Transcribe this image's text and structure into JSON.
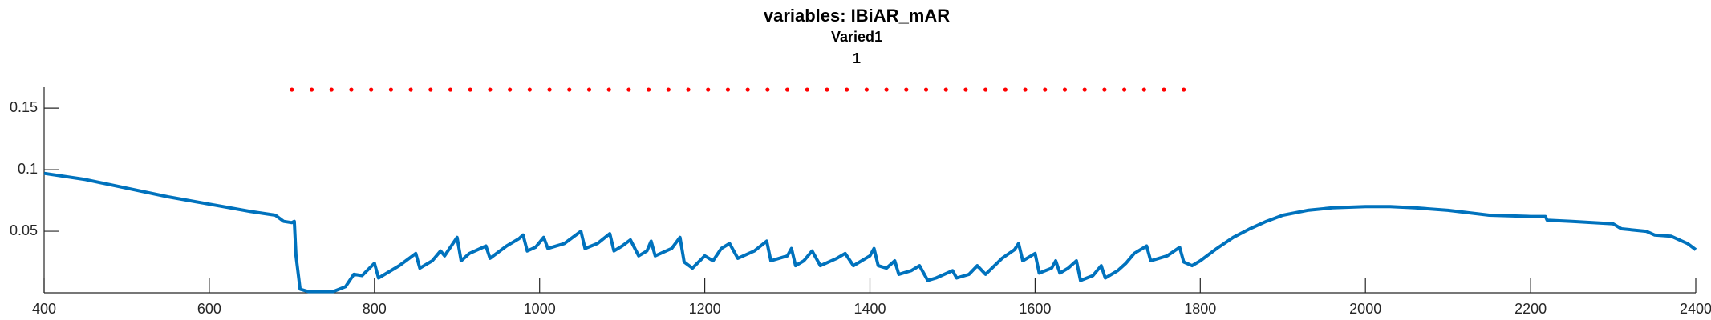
{
  "chart_data": {
    "type": "line",
    "title": "variables: IBiAR_mAR",
    "subtitle": "Varied1",
    "subtitle2": "1",
    "xlim": [
      400,
      2400
    ],
    "ylim": [
      0,
      0.167
    ],
    "xticks": [
      400,
      600,
      800,
      1000,
      1200,
      1400,
      1600,
      1800,
      2000,
      2200,
      2400
    ],
    "yticks": [
      0.05,
      0.1,
      0.15
    ],
    "series": [
      {
        "color": "#0072bd",
        "style": "line",
        "x": [
          400,
          450,
          500,
          550,
          600,
          650,
          680,
          690,
          700,
          703,
          705,
          710,
          720,
          750,
          765,
          775,
          785,
          800,
          805,
          815,
          830,
          850,
          855,
          870,
          880,
          885,
          900,
          905,
          915,
          935,
          940,
          960,
          975,
          980,
          985,
          995,
          1005,
          1010,
          1030,
          1050,
          1055,
          1070,
          1085,
          1090,
          1100,
          1110,
          1120,
          1130,
          1135,
          1140,
          1160,
          1170,
          1175,
          1185,
          1200,
          1210,
          1220,
          1230,
          1240,
          1260,
          1275,
          1280,
          1300,
          1305,
          1310,
          1320,
          1330,
          1340,
          1360,
          1370,
          1380,
          1400,
          1405,
          1410,
          1420,
          1430,
          1435,
          1450,
          1460,
          1470,
          1480,
          1500,
          1505,
          1520,
          1530,
          1540,
          1560,
          1575,
          1580,
          1585,
          1600,
          1605,
          1620,
          1625,
          1630,
          1640,
          1650,
          1655,
          1670,
          1680,
          1685,
          1700,
          1710,
          1720,
          1735,
          1740,
          1760,
          1775,
          1780,
          1790,
          1800,
          1820,
          1840,
          1860,
          1880,
          1900,
          1930,
          1960,
          2000,
          2030,
          2060,
          2100,
          2150,
          2200,
          2218,
          2220,
          2250,
          2300,
          2310,
          2340,
          2350,
          2370,
          2380,
          2390,
          2400
        ],
        "values": [
          0.097,
          0.092,
          0.085,
          0.078,
          0.072,
          0.066,
          0.063,
          0.058,
          0.057,
          0.058,
          0.03,
          0.003,
          0.001,
          0.001,
          0.005,
          0.015,
          0.014,
          0.024,
          0.012,
          0.016,
          0.022,
          0.032,
          0.02,
          0.026,
          0.034,
          0.03,
          0.045,
          0.026,
          0.032,
          0.038,
          0.028,
          0.038,
          0.044,
          0.047,
          0.034,
          0.037,
          0.045,
          0.036,
          0.04,
          0.05,
          0.036,
          0.04,
          0.048,
          0.034,
          0.038,
          0.043,
          0.03,
          0.034,
          0.042,
          0.03,
          0.036,
          0.045,
          0.025,
          0.02,
          0.03,
          0.026,
          0.036,
          0.04,
          0.028,
          0.034,
          0.042,
          0.026,
          0.03,
          0.036,
          0.022,
          0.026,
          0.034,
          0.022,
          0.028,
          0.032,
          0.022,
          0.03,
          0.036,
          0.022,
          0.02,
          0.026,
          0.015,
          0.018,
          0.022,
          0.01,
          0.012,
          0.018,
          0.012,
          0.015,
          0.022,
          0.015,
          0.028,
          0.035,
          0.04,
          0.026,
          0.032,
          0.016,
          0.02,
          0.026,
          0.016,
          0.02,
          0.026,
          0.01,
          0.014,
          0.022,
          0.012,
          0.018,
          0.024,
          0.032,
          0.038,
          0.026,
          0.03,
          0.037,
          0.025,
          0.022,
          0.026,
          0.036,
          0.045,
          0.052,
          0.058,
          0.063,
          0.067,
          0.069,
          0.07,
          0.07,
          0.069,
          0.067,
          0.063,
          0.062,
          0.062,
          0.059,
          0.058,
          0.056,
          0.052,
          0.05,
          0.047,
          0.046,
          0.043,
          0.04,
          0.035
        ]
      },
      {
        "color": "#ff0000",
        "style": "dots",
        "x": [
          700,
          724,
          748,
          772,
          796,
          820,
          844,
          868,
          892,
          916,
          940,
          964,
          988,
          1012,
          1036,
          1060,
          1084,
          1108,
          1132,
          1156,
          1180,
          1204,
          1228,
          1252,
          1276,
          1300,
          1324,
          1348,
          1372,
          1396,
          1420,
          1444,
          1468,
          1492,
          1516,
          1540,
          1564,
          1588,
          1612,
          1636,
          1660,
          1684,
          1708,
          1732,
          1756,
          1780
        ],
        "values": [
          0.165,
          0.165,
          0.165,
          0.165,
          0.165,
          0.165,
          0.165,
          0.165,
          0.165,
          0.165,
          0.165,
          0.165,
          0.165,
          0.165,
          0.165,
          0.165,
          0.165,
          0.165,
          0.165,
          0.165,
          0.165,
          0.165,
          0.165,
          0.165,
          0.165,
          0.165,
          0.165,
          0.165,
          0.165,
          0.165,
          0.165,
          0.165,
          0.165,
          0.165,
          0.165,
          0.165,
          0.165,
          0.165,
          0.165,
          0.165,
          0.165,
          0.165,
          0.165,
          0.165,
          0.165,
          0.165
        ]
      }
    ]
  }
}
